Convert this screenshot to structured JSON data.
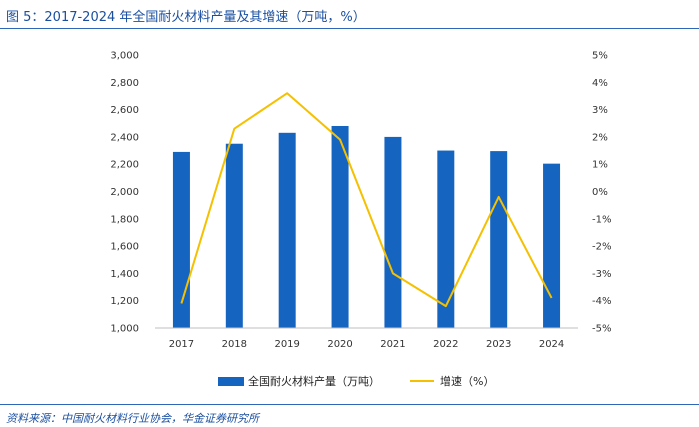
{
  "figure": {
    "title": "图 5：2017-2024 年全国耐火材料产量及其增速（万吨，%）",
    "source": "资料来源：中国耐火材料行业协会，华金证券研究所"
  },
  "colors": {
    "bar": "#1565c0",
    "line": "#f5c000",
    "rule": "#2e67b7",
    "title": "#1a4fa0"
  },
  "chart_data": {
    "type": "bar",
    "title": "2017-2024 年全国耐火材料产量及其增速（万吨，%）",
    "categories": [
      "2017",
      "2018",
      "2019",
      "2020",
      "2021",
      "2022",
      "2023",
      "2024"
    ],
    "series": [
      {
        "name": "全国耐火材料产量（万吨）",
        "type": "bar",
        "axis": "left",
        "values": [
          2290,
          2350,
          2430,
          2480,
          2400,
          2300,
          2296,
          2204
        ]
      },
      {
        "name": "增速（%）",
        "type": "line",
        "axis": "right",
        "values": [
          -4.1,
          2.3,
          3.6,
          1.9,
          -3.0,
          -4.2,
          -0.2,
          -3.9
        ]
      }
    ],
    "y_left": {
      "range": [
        1000,
        3000
      ],
      "ticks": [
        "1,000",
        "1,200",
        "1,400",
        "1,600",
        "1,800",
        "2,000",
        "2,200",
        "2,400",
        "2,600",
        "2,800",
        "3,000"
      ]
    },
    "y_right": {
      "range": [
        -5,
        5
      ],
      "ticks": [
        "-5%",
        "-4%",
        "-3%",
        "-2%",
        "-1%",
        "0%",
        "1%",
        "2%",
        "3%",
        "4%",
        "5%"
      ]
    },
    "grid": false,
    "legend": {
      "position": "bottom",
      "entries": [
        "全国耐火材料产量（万吨）",
        "增速（%）"
      ]
    }
  }
}
